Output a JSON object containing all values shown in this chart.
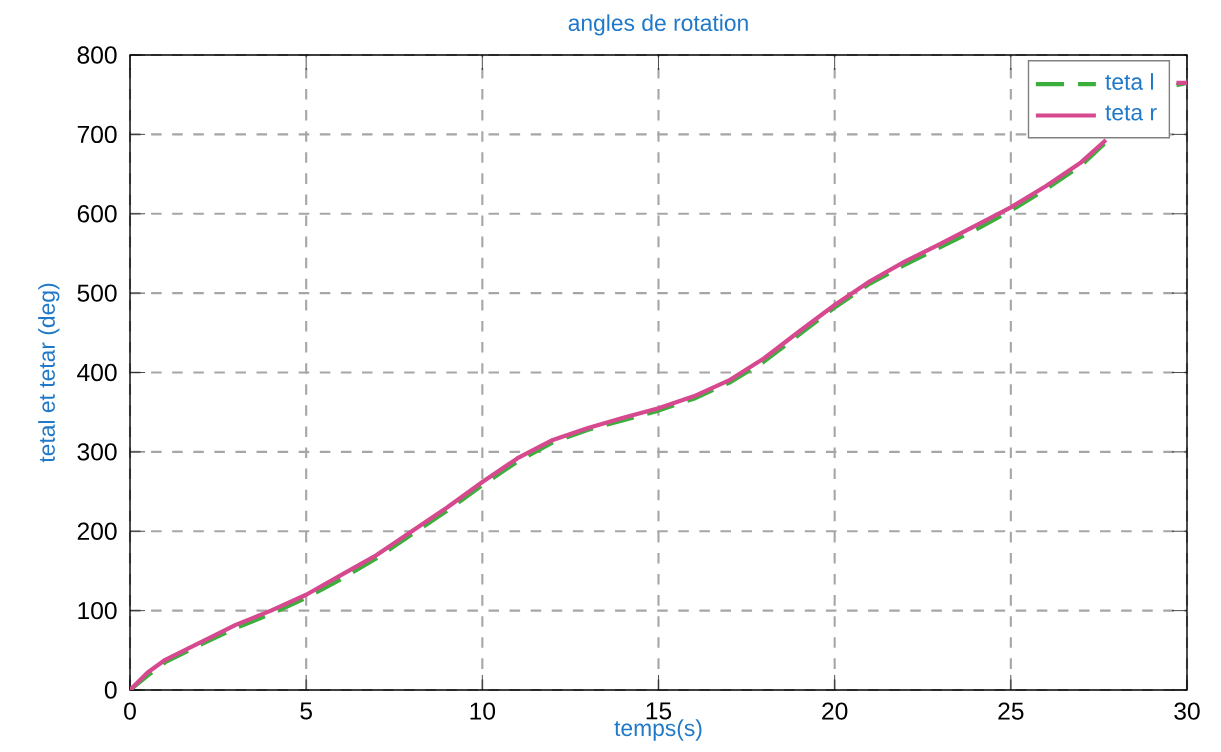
{
  "chart_data": {
    "type": "line",
    "title": "angles de rotation",
    "xlabel": "temps(s)",
    "ylabel": "tetal et tetar (deg)",
    "xlim": [
      0,
      30
    ],
    "ylim": [
      0,
      800
    ],
    "xticks": [
      0,
      5,
      10,
      15,
      20,
      25,
      30
    ],
    "yticks": [
      0,
      100,
      200,
      300,
      400,
      500,
      600,
      700,
      800
    ],
    "grid": true,
    "legend": "top right",
    "series": [
      {
        "name": "teta l",
        "color": "#3cae3c",
        "line_style": "dashed",
        "x": [
          0,
          0.5,
          1,
          2,
          3,
          4,
          5,
          6,
          7,
          8,
          9,
          10,
          11,
          12,
          13,
          14,
          15,
          16,
          17,
          18,
          19,
          20,
          21,
          22,
          23,
          24,
          25,
          26,
          27,
          27.7,
          28.5,
          29.7,
          30
        ],
        "values": [
          0,
          18,
          35,
          57,
          78,
          96,
          116,
          140,
          166,
          196,
          226,
          258,
          288,
          312,
          328,
          340,
          352,
          367,
          387,
          414,
          448,
          482,
          512,
          536,
          558,
          580,
          604,
          631,
          661,
          690,
          null,
          762,
          765
        ]
      },
      {
        "name": "teta r",
        "color": "#d6498f",
        "line_style": "solid",
        "x": [
          0,
          0.5,
          1,
          2,
          3,
          4,
          5,
          6,
          7,
          8,
          9,
          10,
          11,
          12,
          13,
          14,
          15,
          16,
          17,
          18,
          19,
          20,
          21,
          22,
          23,
          24,
          25,
          26,
          27,
          27.7,
          28.5,
          29.7,
          30
        ],
        "values": [
          0,
          22,
          38,
          60,
          82,
          100,
          120,
          145,
          170,
          200,
          230,
          262,
          292,
          315,
          330,
          343,
          355,
          370,
          390,
          418,
          452,
          485,
          515,
          540,
          562,
          585,
          608,
          635,
          665,
          693,
          null,
          765,
          765
        ]
      }
    ]
  }
}
